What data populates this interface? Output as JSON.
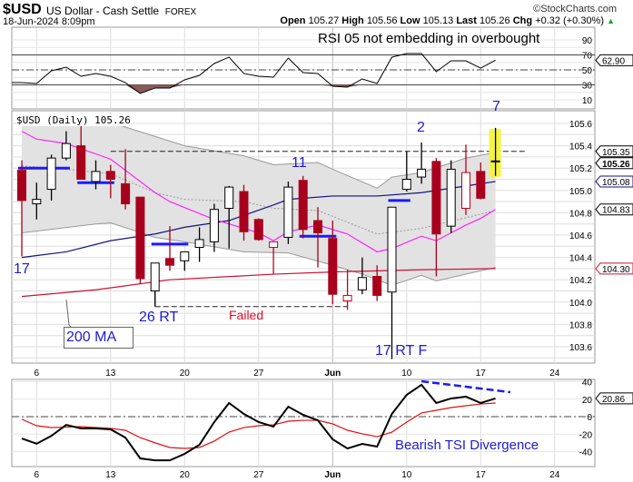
{
  "header": {
    "symbol": "$USD",
    "name": "US Dollar - Cash Settle",
    "exchange": "FOREX",
    "datetime": "18-Jun-2024 8:09pm",
    "watermark": "©StockCharts.com",
    "open_label": "Open",
    "open": "105.27",
    "high_label": "High",
    "high": "105.56",
    "low_label": "Low",
    "low": "105.13",
    "last_label": "Last",
    "last": "105.26",
    "chg_label": "Chg",
    "chg": "+0.32 (+0.30%)",
    "chg_icon": "triangle-up-icon"
  },
  "annotations": {
    "rsi_note": "RSI 05 not embedding in overbought",
    "n17": "17",
    "n26rt": "26 RT",
    "failed": "Failed",
    "ma200": "200 MA",
    "n11": "11",
    "n2": "2",
    "n7": "7",
    "n17rtf": "17 RT F",
    "tsi_note": "Bearish TSI Divergence"
  },
  "colors": {
    "down": "#a8001c",
    "up": "#000000",
    "up_red": "#c0001c",
    "band": "#e2e2e2",
    "ema": "#ff22ff",
    "ma50": "#13137a",
    "ma200": "#cc1133",
    "annot": "#1b1bd6",
    "highlight": "#f4f442"
  },
  "chart_data": [
    {
      "type": "candlestick",
      "title": "$USD (Daily) 105.26",
      "dates": [
        "2024-05-03",
        "2024-05-06",
        "2024-05-07",
        "2024-05-08",
        "2024-05-09",
        "2024-05-10",
        "2024-05-13",
        "2024-05-14",
        "2024-05-15",
        "2024-05-16",
        "2024-05-17",
        "2024-05-20",
        "2024-05-21",
        "2024-05-22",
        "2024-05-23",
        "2024-05-24",
        "2024-05-27",
        "2024-05-28",
        "2024-05-29",
        "2024-05-30",
        "2024-05-31",
        "2024-06-03",
        "2024-06-04",
        "2024-06-05",
        "2024-06-06",
        "2024-06-07",
        "2024-06-10",
        "2024-06-11",
        "2024-06-12",
        "2024-06-13",
        "2024-06-14",
        "2024-06-17",
        "2024-06-18"
      ],
      "candles": [
        [
          105.18,
          105.27,
          104.41,
          104.91,
          "down"
        ],
        [
          104.88,
          105.07,
          104.74,
          104.92,
          "up"
        ],
        [
          105.01,
          105.32,
          104.91,
          105.29,
          "up"
        ],
        [
          105.29,
          105.53,
          105.27,
          105.42,
          "up"
        ],
        [
          105.4,
          105.58,
          105.1,
          105.1,
          "down"
        ],
        [
          105.08,
          105.27,
          105.01,
          105.17,
          "up"
        ],
        [
          105.17,
          105.23,
          104.93,
          105.1,
          "down"
        ],
        [
          105.06,
          105.37,
          104.83,
          104.88,
          "down"
        ],
        [
          104.94,
          104.94,
          104.16,
          104.21,
          "down"
        ],
        [
          104.1,
          104.35,
          103.96,
          104.35,
          "up"
        ],
        [
          104.39,
          104.68,
          104.28,
          104.33,
          "down"
        ],
        [
          104.37,
          104.45,
          104.28,
          104.45,
          "up"
        ],
        [
          104.49,
          104.67,
          104.36,
          104.56,
          "up"
        ],
        [
          104.54,
          104.88,
          104.45,
          104.83,
          "up"
        ],
        [
          104.84,
          105.04,
          104.48,
          105.03,
          "up"
        ],
        [
          104.99,
          105.05,
          104.55,
          104.63,
          "down"
        ],
        [
          104.74,
          104.75,
          104.55,
          104.56,
          "down"
        ],
        [
          104.49,
          104.54,
          104.25,
          104.54,
          "up_red"
        ],
        [
          104.58,
          105.08,
          104.52,
          105.03,
          "up"
        ],
        [
          105.09,
          105.13,
          104.57,
          104.65,
          "down"
        ],
        [
          104.73,
          104.85,
          104.31,
          104.62,
          "down"
        ],
        [
          104.57,
          104.73,
          103.98,
          104.07,
          "down"
        ],
        [
          104.01,
          104.29,
          103.93,
          104.06,
          "up_red"
        ],
        [
          104.11,
          104.4,
          104.07,
          104.22,
          "up"
        ],
        [
          104.23,
          104.33,
          104.01,
          104.06,
          "down"
        ],
        [
          104.09,
          104.85,
          103.49,
          104.85,
          "up"
        ],
        [
          105.01,
          105.35,
          104.99,
          105.1,
          "up"
        ],
        [
          105.12,
          105.43,
          105.06,
          105.19,
          "up"
        ],
        [
          105.26,
          105.29,
          104.23,
          104.61,
          "down"
        ],
        [
          104.68,
          105.27,
          104.62,
          105.19,
          "up"
        ],
        [
          104.84,
          105.41,
          104.78,
          105.16,
          "up_red"
        ],
        [
          105.17,
          105.25,
          104.92,
          104.93,
          "down"
        ],
        [
          105.27,
          105.56,
          105.13,
          105.26,
          "last"
        ]
      ],
      "overlays": {
        "bb_upper": [
          [
            "2024-05-03",
            105.58
          ],
          [
            "2024-05-13",
            105.61
          ],
          [
            "2024-05-20",
            105.4
          ],
          [
            "2024-05-24",
            105.31
          ],
          [
            "2024-05-28",
            105.23
          ],
          [
            "2024-05-31",
            105.25
          ],
          [
            "2024-06-03",
            105.19
          ],
          [
            "2024-06-06",
            105.02
          ],
          [
            "2024-06-07",
            105.12
          ],
          [
            "2024-06-11",
            105.16
          ],
          [
            "2024-06-14",
            105.29
          ],
          [
            "2024-06-18",
            105.34
          ]
        ],
        "bb_lower": [
          [
            "2024-05-03",
            104.62
          ],
          [
            "2024-05-10",
            104.7
          ],
          [
            "2024-05-13",
            104.71
          ],
          [
            "2024-05-16",
            104.58
          ],
          [
            "2024-05-20",
            104.54
          ],
          [
            "2024-05-24",
            104.45
          ],
          [
            "2024-05-29",
            104.44
          ],
          [
            "2024-06-03",
            104.33
          ],
          [
            "2024-06-05",
            104.25
          ],
          [
            "2024-06-07",
            104.15
          ],
          [
            "2024-06-11",
            104.24
          ],
          [
            "2024-06-12",
            104.19
          ],
          [
            "2024-06-14",
            104.25
          ],
          [
            "2024-06-18",
            104.31
          ]
        ],
        "bb_mid": [
          [
            "2024-05-03",
            105.22
          ],
          [
            "2024-05-08",
            105.19
          ],
          [
            "2024-05-13",
            105.15
          ],
          [
            "2024-05-16",
            104.98
          ],
          [
            "2024-05-20",
            104.92
          ],
          [
            "2024-05-24",
            104.9
          ],
          [
            "2024-05-28",
            104.84
          ],
          [
            "2024-05-31",
            104.82
          ],
          [
            "2024-06-06",
            104.61
          ],
          [
            "2024-06-11",
            104.66
          ],
          [
            "2024-06-18",
            104.82
          ]
        ],
        "ema": [
          [
            "2024-05-03",
            105.53
          ],
          [
            "2024-05-06",
            105.46
          ],
          [
            "2024-05-08",
            105.42
          ],
          [
            "2024-05-13",
            105.28
          ],
          [
            "2024-05-16",
            104.98
          ],
          [
            "2024-05-17",
            104.9
          ],
          [
            "2024-05-22",
            104.74
          ],
          [
            "2024-05-23",
            104.7
          ],
          [
            "2024-05-27",
            104.62
          ],
          [
            "2024-05-28",
            104.55
          ],
          [
            "2024-05-29",
            104.63
          ],
          [
            "2024-05-31",
            104.69
          ],
          [
            "2024-06-04",
            104.61
          ],
          [
            "2024-06-06",
            104.45
          ],
          [
            "2024-06-07",
            104.48
          ],
          [
            "2024-06-11",
            104.59
          ],
          [
            "2024-06-12",
            104.55
          ],
          [
            "2024-06-14",
            104.69
          ],
          [
            "2024-06-17",
            104.75
          ],
          [
            "2024-06-18",
            104.83
          ]
        ],
        "ma50": [
          [
            "2024-05-03",
            104.4
          ],
          [
            "2024-05-08",
            104.45
          ],
          [
            "2024-05-13",
            104.55
          ],
          [
            "2024-05-16",
            104.61
          ],
          [
            "2024-05-20",
            104.67
          ],
          [
            "2024-05-23",
            104.73
          ],
          [
            "2024-05-28",
            104.87
          ],
          [
            "2024-05-29",
            104.92
          ],
          [
            "2024-06-03",
            104.95
          ],
          [
            "2024-06-06",
            104.95
          ],
          [
            "2024-06-11",
            104.98
          ],
          [
            "2024-06-14",
            105.04
          ],
          [
            "2024-06-18",
            105.08
          ]
        ],
        "ma200": [
          [
            "2024-05-03",
            104.05
          ],
          [
            "2024-05-10",
            104.11
          ],
          [
            "2024-05-17",
            104.2
          ],
          [
            "2024-05-28",
            104.25
          ],
          [
            "2024-06-03",
            104.27
          ],
          [
            "2024-06-11",
            104.29
          ],
          [
            "2024-06-18",
            104.3
          ]
        ]
      },
      "levels": [
        {
          "from": "2024-05-13",
          "to": "2024-06-20",
          "price": 105.35,
          "style": "dashed"
        },
        {
          "from": "2024-05-16",
          "to": "2024-06-04",
          "price": 103.96,
          "style": "dashed"
        },
        {
          "from": "2024-05-03",
          "to": "2024-05-08",
          "price": 105.2,
          "style": "blue"
        },
        {
          "from": "2024-05-09",
          "to": "2024-05-13",
          "price": 105.07,
          "style": "blue"
        },
        {
          "from": "2024-05-16",
          "to": "2024-05-20",
          "price": 104.52,
          "style": "blue"
        },
        {
          "from": "2024-05-30",
          "to": "2024-06-03",
          "price": 104.59,
          "style": "blue"
        },
        {
          "from": "2024-06-07",
          "to": "2024-06-10",
          "price": 104.91,
          "style": "blue"
        }
      ],
      "y_ticks": [
        "105.6",
        "105.4",
        "105.2",
        "105.0",
        "104.8",
        "104.6",
        "104.4",
        "104.2",
        "104.0",
        "103.8",
        "103.6"
      ],
      "ylim": [
        103.45,
        105.72
      ],
      "value_tags": [
        {
          "value": "105.35",
          "price": 105.35,
          "color": "#000000"
        },
        {
          "value": "105.26",
          "price": 105.26,
          "color": "#000000",
          "bold": true
        },
        {
          "value": "105.08",
          "price": 105.08,
          "color": "#13137a"
        },
        {
          "value": "104.83",
          "price": 104.83,
          "color": "#000000"
        },
        {
          "value": "104.30",
          "price": 104.3,
          "color": "#cc1133"
        }
      ],
      "x_ticks": [
        [
          "2024-05-06",
          "6"
        ],
        [
          "2024-05-13",
          "13"
        ],
        [
          "2024-05-20",
          "20"
        ],
        [
          "2024-05-27",
          "27"
        ],
        [
          "2024-06-03",
          "Jun"
        ],
        [
          "2024-06-10",
          "10"
        ],
        [
          "2024-06-17",
          "17"
        ],
        [
          "2024-06-24",
          "24"
        ]
      ],
      "grid": true
    },
    {
      "type": "line",
      "name": "RSI",
      "values": [
        33,
        31.8,
        48.8,
        53.6,
        41.5,
        45.2,
        41.5,
        33,
        18.5,
        25.8,
        25.8,
        36.7,
        42.7,
        58.5,
        67,
        45.2,
        41.5,
        40.3,
        65.8,
        46.4,
        45.2,
        28.2,
        27,
        37.9,
        31.8,
        67,
        71.8,
        71.8,
        47.6,
        62.1,
        62.1,
        52.4,
        62.9
      ],
      "y_ticks": [
        "90",
        "70",
        "50",
        "30",
        "10"
      ],
      "ylim": [
        0,
        100
      ],
      "levels": [
        70,
        50,
        30
      ],
      "value_tag": "62.90"
    },
    {
      "type": "line",
      "name": "TSI",
      "tsi": [
        -25,
        -31,
        -22,
        -9.4,
        -13.5,
        -13.5,
        -14.5,
        -24,
        -47.8,
        -50,
        -50,
        -42.6,
        -32.2,
        -6.2,
        15.6,
        3.1,
        -6.2,
        -11.4,
        11.4,
        2.1,
        -4.2,
        -26,
        -36.4,
        -31.2,
        -34.3,
        3.1,
        24.9,
        36.4,
        15.6,
        20.8,
        22.9,
        15.6,
        20.86
      ],
      "signal": [
        -3,
        -10.4,
        -12.5,
        -12,
        -11.4,
        -12.5,
        -13.5,
        -15.6,
        -24,
        -30,
        -35.3,
        -36.4,
        -35.3,
        -28,
        -17.7,
        -12.5,
        -10.4,
        -9.4,
        -5.2,
        -4.2,
        -4.2,
        -8.3,
        -15.6,
        -19.7,
        -22.9,
        -17.7,
        -6.2,
        4.2,
        7.3,
        10.4,
        12.5,
        14.5,
        15.6
      ],
      "divergence_line": [
        [
          "2024-06-11",
          40.5
        ],
        [
          "2024-06-19",
          28
        ]
      ],
      "y_ticks": [
        "40",
        "20",
        "0",
        "-20",
        "-40"
      ],
      "ylim": [
        -58,
        42
      ],
      "value_tag": "20.86"
    }
  ]
}
